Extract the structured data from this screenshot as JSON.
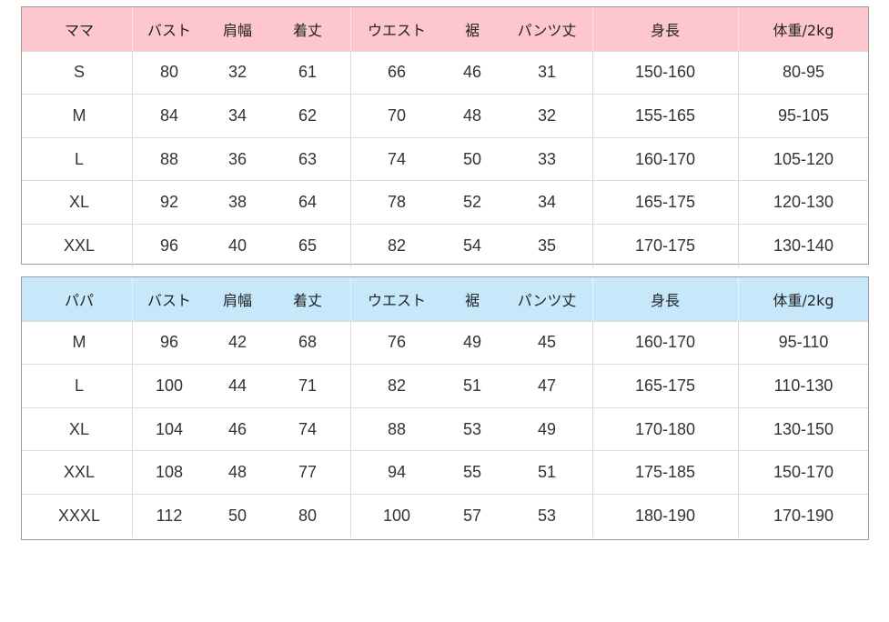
{
  "colors": {
    "mama_header": "#fdc7cd",
    "papa_header": "#c6e8fa"
  },
  "tables": [
    {
      "id": "mama",
      "headers": [
        "ママ",
        "バスト",
        "肩幅",
        "着丈",
        "ウエスト",
        "裾",
        "パンツ丈",
        "身長",
        "体重/2kg"
      ],
      "rows": [
        [
          "S",
          "80",
          "32",
          "61",
          "66",
          "46",
          "31",
          "150-160",
          "80-95"
        ],
        [
          "M",
          "84",
          "34",
          "62",
          "70",
          "48",
          "32",
          "155-165",
          "95-105"
        ],
        [
          "L",
          "88",
          "36",
          "63",
          "74",
          "50",
          "33",
          "160-170",
          "105-120"
        ],
        [
          "XL",
          "92",
          "38",
          "64",
          "78",
          "52",
          "34",
          "165-175",
          "120-130"
        ],
        [
          "XXL",
          "96",
          "40",
          "65",
          "82",
          "54",
          "35",
          "170-175",
          "130-140"
        ]
      ]
    },
    {
      "id": "papa",
      "headers": [
        "パパ",
        "バスト",
        "肩幅",
        "着丈",
        "ウエスト",
        "裾",
        "パンツ丈",
        "身長",
        "体重/2kg"
      ],
      "rows": [
        [
          "M",
          "96",
          "42",
          "68",
          "76",
          "49",
          "45",
          "160-170",
          "95-110"
        ],
        [
          "L",
          "100",
          "44",
          "71",
          "82",
          "51",
          "47",
          "165-175",
          "110-130"
        ],
        [
          "XL",
          "104",
          "46",
          "74",
          "88",
          "53",
          "49",
          "170-180",
          "130-150"
        ],
        [
          "XXL",
          "108",
          "48",
          "77",
          "94",
          "55",
          "51",
          "175-185",
          "150-170"
        ],
        [
          "XXXL",
          "112",
          "50",
          "80",
          "100",
          "57",
          "53",
          "180-190",
          "170-190"
        ]
      ]
    }
  ]
}
